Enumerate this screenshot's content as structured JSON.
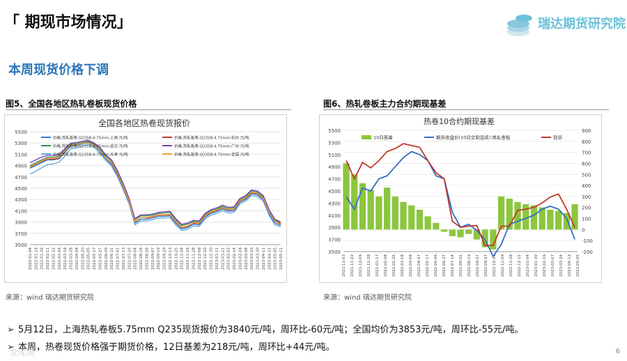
{
  "header": {
    "title": "「 期现市场情况」",
    "logo_text": "瑞达期货研究院"
  },
  "subtitle": "本周现货价格下调",
  "figures": {
    "left_caption": "图5、全国各地区热轧卷板现货价格",
    "right_caption": "图6、热轧卷板主力合约期现基差",
    "left_source": "来源：wind   瑞达期货研究院",
    "right_source": "来源：wind   瑞达期货研究院"
  },
  "bullets": [
    "5月12日，上海热轧卷板5.75mm Q235现货报价为3840元/吨，周环比-60元/吨；全国均价为3853元/吨，周环比-55元/吨。",
    "本周，热卷现货价格强于期货价格，12日基差为218元/吨，周环比+44元/吨。"
  ],
  "bullet_mark": "➢",
  "page_number": "6",
  "watermark": "文库网",
  "chart_data": [
    {
      "type": "line",
      "title": "全国各地区热卷现货报价",
      "ylim": [
        3500,
        5500
      ],
      "yticks": [
        3500,
        3700,
        3900,
        4100,
        4300,
        4500,
        4700,
        4900,
        5100,
        5300,
        5500
      ],
      "xticks": [
        "2022-01-04",
        "2022-01-14",
        "2022-01-26",
        "2022-02-11",
        "2022-02-22",
        "2022-03-04",
        "2022-03-16",
        "2022-03-28",
        "2022-04-08",
        "2022-04-20",
        "2022-05-05",
        "2022-05-17",
        "2022-05-27",
        "2022-06-09",
        "2022-06-21",
        "2022-07-01",
        "2022-07-13",
        "2022-07-25",
        "2022-08-04",
        "2022-08-16",
        "2022-08-26",
        "2022-09-07",
        "2022-09-19",
        "2022-09-29",
        "2022-10-13",
        "2022-10-25",
        "2022-11-04",
        "2022-11-16",
        "2022-11-28",
        "2022-12-08",
        "2022-12-20",
        "2022-12-30",
        "2023-01-11",
        "2023-01-21",
        "2023-02-02",
        "2023-02-14",
        "2023-02-24",
        "2023-03-08",
        "2023-03-20",
        "2023-03-30",
        "2023-04-11",
        "2023-04-21",
        "2023-05-05",
        "2023-05-11"
      ],
      "series": [
        {
          "name": "价格:热轧板卷:Q235B:4.75mm:上海 元/吨",
          "color": "#2f7bd0",
          "values": [
            4850,
            4900,
            4950,
            5000,
            5000,
            5020,
            5130,
            5250,
            5250,
            5290,
            5300,
            5250,
            5150,
            5020,
            4920,
            4730,
            4500,
            4250,
            3880,
            3950,
            3950,
            3970,
            4000,
            4000,
            4010,
            3880,
            3780,
            3800,
            3860,
            3850,
            3980,
            4050,
            4080,
            4130,
            4090,
            4100,
            4250,
            4300,
            4400,
            4380,
            4300,
            4050,
            3880,
            3840
          ]
        },
        {
          "name": "价格:热轧板卷:Q235B:4.75mm:杭州 元/吨",
          "color": "#c0392b",
          "values": [
            4870,
            4920,
            4970,
            5020,
            5010,
            5040,
            5150,
            5270,
            5270,
            5300,
            5320,
            5270,
            5170,
            5040,
            4940,
            4750,
            4520,
            4270,
            3900,
            3980,
            3970,
            3990,
            4020,
            4020,
            4030,
            3900,
            3800,
            3820,
            3880,
            3870,
            4000,
            4070,
            4100,
            4150,
            4110,
            4120,
            4270,
            4320,
            4420,
            4400,
            4320,
            4080,
            3910,
            3870
          ]
        },
        {
          "name": "价格:热轧板卷:Q235B:4.75mm:武汉 元/吨",
          "color": "#2e8b57",
          "values": [
            4900,
            4950,
            5000,
            5050,
            5050,
            5070,
            5180,
            5280,
            5290,
            5310,
            5330,
            5290,
            5200,
            5070,
            4980,
            4790,
            4560,
            4300,
            3940,
            4010,
            4010,
            4020,
            4050,
            4060,
            4070,
            3940,
            3840,
            3860,
            3910,
            3900,
            4030,
            4100,
            4130,
            4180,
            4140,
            4150,
            4300,
            4350,
            4450,
            4430,
            4350,
            4100,
            3930,
            3890
          ]
        },
        {
          "name": "价格:热轧板卷:Q235B:4.75mm:广州 元/吨",
          "color": "#7a3fb0",
          "values": [
            4950,
            5000,
            5050,
            5080,
            5080,
            5100,
            5200,
            5300,
            5310,
            5330,
            5350,
            5300,
            5220,
            5090,
            5000,
            4810,
            4580,
            4320,
            3960,
            4030,
            4030,
            4040,
            4070,
            4080,
            4090,
            3960,
            3860,
            3880,
            3930,
            3920,
            4050,
            4120,
            4150,
            4200,
            4160,
            4170,
            4320,
            4370,
            4470,
            4450,
            4370,
            4120,
            3950,
            3900
          ]
        },
        {
          "name": "价格:热轧板卷:Q235B:4.75mm:天津 元/吨",
          "color": "#5fa6d8",
          "values": [
            4750,
            4800,
            4860,
            4920,
            4930,
            4960,
            5070,
            5200,
            5210,
            5250,
            5270,
            5220,
            5120,
            4990,
            4890,
            4700,
            4470,
            4220,
            3850,
            3920,
            3920,
            3940,
            3970,
            3970,
            3980,
            3850,
            3750,
            3770,
            3830,
            3820,
            3950,
            4020,
            4050,
            4100,
            4060,
            4070,
            4220,
            4270,
            4370,
            4350,
            4270,
            4020,
            3850,
            3820
          ]
        },
        {
          "name": "价格:热轧板卷:Q235B:4.75mm:全国 元/吨",
          "color": "#f0a030",
          "values": [
            4880,
            4930,
            4980,
            5030,
            5030,
            5050,
            5160,
            5270,
            5270,
            5300,
            5310,
            5260,
            5170,
            5040,
            4950,
            4760,
            4530,
            4280,
            3910,
            3980,
            3980,
            4000,
            4030,
            4030,
            4040,
            3910,
            3810,
            3830,
            3890,
            3880,
            4010,
            4080,
            4110,
            4160,
            4120,
            4130,
            4280,
            4330,
            4430,
            4410,
            4330,
            4080,
            3910,
            3853
          ]
        }
      ]
    },
    {
      "type": "bar",
      "title": "热卷10合约期现基差",
      "ylim_left": [
        3500,
        5500
      ],
      "ylim_right": [
        -200,
        900
      ],
      "yticks_left": [
        3500,
        3700,
        3900,
        4100,
        4300,
        4500,
        4700,
        4900,
        5100,
        5300,
        5500
      ],
      "yticks_right": [
        -200,
        -100,
        0,
        100,
        200,
        300,
        400,
        500,
        600,
        700,
        800,
        900
      ],
      "xticks": [
        "2021-11-03",
        "2021-11-22",
        "2021-12-09",
        "2021-12-28",
        "2022-01-17",
        "2022-02-08",
        "2022-02-25",
        "2022-03-18",
        "2022-04-08",
        "2022-04-27",
        "2022-05-17",
        "2022-06-06",
        "2022-06-27",
        "2022-07-14",
        "2022-08-02",
        "2022-08-19",
        "2022-09-07",
        "2022-09-27",
        "2022-10-21",
        "2022-11-09",
        "2022-11-28",
        "2022-12-15",
        "2023-01-04",
        "2023-01-30",
        "2023-02-16",
        "2023-03-07",
        "2023-03-24",
        "2023-04-13",
        "2023-05-05"
      ],
      "series": [
        {
          "name": "10月基差",
          "color": "#8cc63f",
          "axis": "right",
          "values": [
            600,
            500,
            420,
            360,
            300,
            380,
            300,
            250,
            220,
            180,
            120,
            60,
            -20,
            -60,
            -70,
            -40,
            -90,
            -160,
            -180,
            300,
            280,
            250,
            230,
            220,
            200,
            180,
            170,
            150,
            230
          ]
        },
        {
          "name": "期货收盘价(10月交割连续):热轧卷板",
          "color": "#2f6fbf",
          "axis": "left",
          "values": [
            4400,
            4200,
            4550,
            4500,
            4700,
            4750,
            4900,
            5050,
            5150,
            5100,
            5000,
            4750,
            4700,
            4150,
            3900,
            3950,
            3850,
            3700,
            3420,
            3620,
            3950,
            4000,
            4050,
            4100,
            4200,
            4250,
            4200,
            4050,
            3700
          ]
        },
        {
          "name": "现货",
          "color": "#c0392b",
          "axis": "left",
          "values": [
            5000,
            4700,
            4970,
            4880,
            5000,
            5150,
            5200,
            5280,
            5250,
            5220,
            5000,
            4800,
            4700,
            4000,
            3900,
            3920,
            3930,
            3600,
            3600,
            3920,
            3920,
            4180,
            4200,
            4230,
            4300,
            4400,
            4450,
            4200,
            3900
          ]
        }
      ]
    }
  ]
}
